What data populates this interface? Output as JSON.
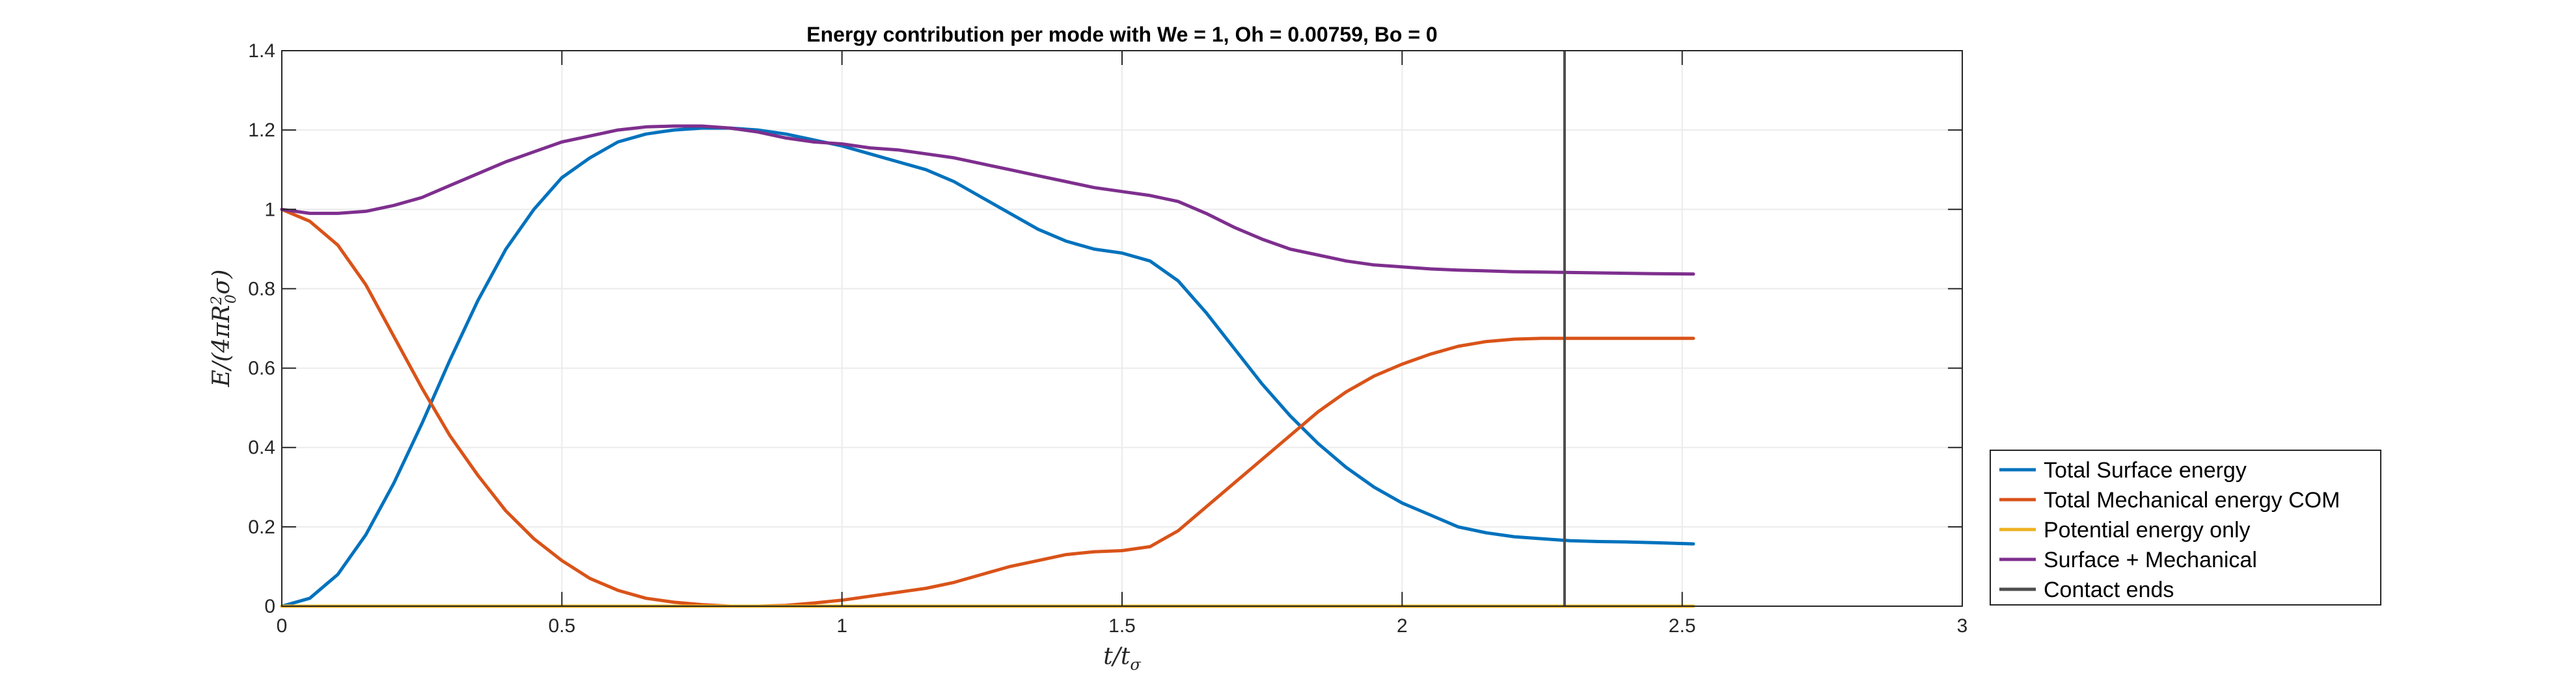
{
  "chart_data": {
    "type": "line",
    "title": "Energy contribution per mode with We = 1, Oh = 0.00759, Bo = 0",
    "xlabel": "t/t_σ",
    "ylabel": "E/(4πR_0^2σ)",
    "xlim": [
      0,
      3
    ],
    "ylim": [
      0,
      1.4
    ],
    "xticks": [
      0,
      0.5,
      1,
      1.5,
      2,
      2.5,
      3
    ],
    "yticks": [
      0,
      0.2,
      0.4,
      0.6,
      0.8,
      1,
      1.2,
      1.4
    ],
    "xtick_labels": [
      "0",
      "0.5",
      "1",
      "1.5",
      "2",
      "2.5",
      "3"
    ],
    "ytick_labels": [
      "0",
      "0.2",
      "0.4",
      "0.6",
      "0.8",
      "1",
      "1.2",
      "1.4"
    ],
    "grid": true,
    "legend_position": "bottom-right outside",
    "series": [
      {
        "name": "Total Surface energy",
        "color": "#0072BD",
        "x": [
          0,
          0.05,
          0.1,
          0.15,
          0.2,
          0.25,
          0.3,
          0.35,
          0.4,
          0.45,
          0.5,
          0.55,
          0.6,
          0.65,
          0.7,
          0.75,
          0.8,
          0.85,
          0.9,
          0.95,
          1.0,
          1.05,
          1.1,
          1.15,
          1.2,
          1.25,
          1.3,
          1.35,
          1.4,
          1.45,
          1.5,
          1.55,
          1.6,
          1.65,
          1.7,
          1.75,
          1.8,
          1.85,
          1.9,
          1.95,
          2.0,
          2.05,
          2.1,
          2.15,
          2.2,
          2.25,
          2.3,
          2.35,
          2.4,
          2.45,
          2.52
        ],
        "y": [
          0.0,
          0.02,
          0.08,
          0.18,
          0.31,
          0.46,
          0.62,
          0.77,
          0.9,
          1.0,
          1.08,
          1.13,
          1.17,
          1.19,
          1.2,
          1.205,
          1.205,
          1.2,
          1.19,
          1.175,
          1.16,
          1.14,
          1.12,
          1.1,
          1.07,
          1.03,
          0.99,
          0.95,
          0.92,
          0.9,
          0.89,
          0.87,
          0.82,
          0.74,
          0.65,
          0.56,
          0.48,
          0.41,
          0.35,
          0.3,
          0.26,
          0.23,
          0.2,
          0.185,
          0.175,
          0.17,
          0.165,
          0.163,
          0.162,
          0.16,
          0.157
        ]
      },
      {
        "name": "Total Mechanical energy COM",
        "color": "#D95319",
        "x": [
          0,
          0.05,
          0.1,
          0.15,
          0.2,
          0.25,
          0.3,
          0.35,
          0.4,
          0.45,
          0.5,
          0.55,
          0.6,
          0.65,
          0.7,
          0.75,
          0.8,
          0.85,
          0.9,
          0.95,
          1.0,
          1.05,
          1.1,
          1.15,
          1.2,
          1.25,
          1.3,
          1.35,
          1.4,
          1.45,
          1.5,
          1.55,
          1.6,
          1.65,
          1.7,
          1.75,
          1.8,
          1.85,
          1.9,
          1.95,
          2.0,
          2.05,
          2.1,
          2.15,
          2.2,
          2.25,
          2.3,
          2.35,
          2.4,
          2.45,
          2.52
        ],
        "y": [
          1.0,
          0.97,
          0.91,
          0.81,
          0.68,
          0.55,
          0.43,
          0.33,
          0.24,
          0.17,
          0.115,
          0.07,
          0.04,
          0.02,
          0.01,
          0.004,
          0.0,
          0.0,
          0.002,
          0.008,
          0.015,
          0.025,
          0.035,
          0.045,
          0.06,
          0.08,
          0.1,
          0.115,
          0.13,
          0.137,
          0.14,
          0.15,
          0.19,
          0.25,
          0.31,
          0.37,
          0.43,
          0.49,
          0.54,
          0.58,
          0.61,
          0.635,
          0.655,
          0.667,
          0.673,
          0.675,
          0.675,
          0.675,
          0.675,
          0.675,
          0.675
        ]
      },
      {
        "name": "Potential energy only",
        "color": "#EDB120",
        "x": [
          0,
          2.52
        ],
        "y": [
          0,
          0
        ]
      },
      {
        "name": "Surface + Mechanical",
        "color": "#7E2F8E",
        "x": [
          0,
          0.05,
          0.1,
          0.15,
          0.2,
          0.25,
          0.3,
          0.35,
          0.4,
          0.45,
          0.5,
          0.55,
          0.6,
          0.65,
          0.7,
          0.75,
          0.8,
          0.85,
          0.9,
          0.95,
          1.0,
          1.05,
          1.1,
          1.15,
          1.2,
          1.25,
          1.3,
          1.35,
          1.4,
          1.45,
          1.5,
          1.55,
          1.6,
          1.65,
          1.7,
          1.75,
          1.8,
          1.85,
          1.9,
          1.95,
          2.0,
          2.05,
          2.1,
          2.15,
          2.2,
          2.25,
          2.3,
          2.35,
          2.4,
          2.45,
          2.52
        ],
        "y": [
          1.0,
          0.99,
          0.99,
          0.995,
          1.01,
          1.03,
          1.06,
          1.09,
          1.12,
          1.145,
          1.17,
          1.185,
          1.2,
          1.208,
          1.21,
          1.21,
          1.205,
          1.195,
          1.18,
          1.17,
          1.165,
          1.155,
          1.15,
          1.14,
          1.13,
          1.115,
          1.1,
          1.085,
          1.07,
          1.055,
          1.045,
          1.035,
          1.02,
          0.99,
          0.955,
          0.925,
          0.9,
          0.885,
          0.87,
          0.86,
          0.855,
          0.85,
          0.847,
          0.845,
          0.843,
          0.842,
          0.841,
          0.84,
          0.839,
          0.838,
          0.837
        ]
      },
      {
        "name": "Contact ends",
        "color": "#4D4D4D",
        "type": "vline",
        "x": 2.29
      }
    ]
  }
}
